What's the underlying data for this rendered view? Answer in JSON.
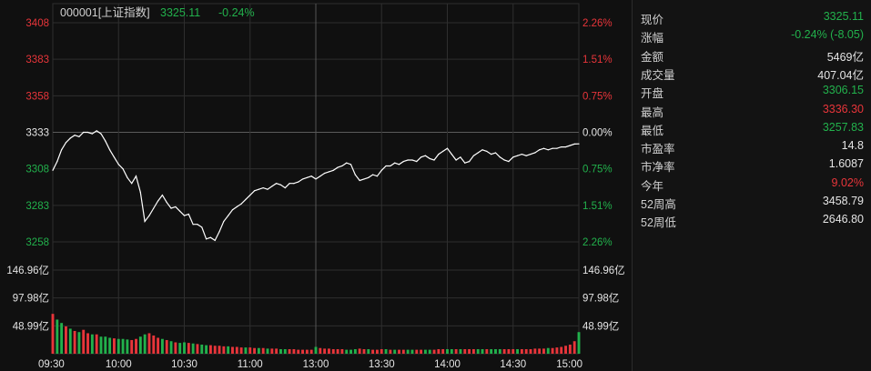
{
  "header": {
    "code_name": "000001[上证指数]",
    "price": "3325.11",
    "change_pct": "-0.24%"
  },
  "colors": {
    "up": "#e8353a",
    "down": "#22b14c",
    "neutral": "#e4e4e4",
    "grid": "#2e2e2e",
    "line": "#ffffff"
  },
  "chart_data": [
    {
      "type": "line",
      "name": "price",
      "x_ticks": [
        "09:30",
        "10:00",
        "10:30",
        "11:00",
        "13:00",
        "13:30",
        "14:00",
        "14:30",
        "15:00"
      ],
      "y_left_ticks": [
        "3408",
        "3383",
        "3358",
        "3333",
        "3308",
        "3283",
        "3258"
      ],
      "y_left_tick_values": [
        3408,
        3383,
        3358,
        3333,
        3308,
        3283,
        3258
      ],
      "y_left_tick_colors": [
        "up",
        "up",
        "up",
        "neutral",
        "down",
        "down",
        "down"
      ],
      "y_right_ticks": [
        "2.26%",
        "1.51%",
        "0.75%",
        "0.00%",
        "0.75%",
        "1.51%",
        "2.26%"
      ],
      "ylim": [
        3258,
        3408
      ],
      "prev_close": 3333.16,
      "grid": true,
      "x": [
        "09:30",
        "09:32",
        "09:34",
        "09:36",
        "09:38",
        "09:40",
        "09:42",
        "09:44",
        "09:46",
        "09:48",
        "09:50",
        "09:52",
        "09:54",
        "09:56",
        "09:58",
        "10:00",
        "10:02",
        "10:04",
        "10:06",
        "10:08",
        "10:10",
        "10:12",
        "10:14",
        "10:16",
        "10:18",
        "10:20",
        "10:22",
        "10:24",
        "10:26",
        "10:28",
        "10:30",
        "10:32",
        "10:34",
        "10:36",
        "10:38",
        "10:40",
        "10:42",
        "10:44",
        "10:46",
        "10:48",
        "10:50",
        "10:52",
        "10:54",
        "10:56",
        "10:58",
        "11:00",
        "11:02",
        "11:04",
        "11:06",
        "11:08",
        "11:10",
        "11:12",
        "11:14",
        "11:16",
        "11:18",
        "11:20",
        "11:22",
        "11:24",
        "11:26",
        "11:28",
        "11:30/13:00",
        "13:02",
        "13:04",
        "13:06",
        "13:08",
        "13:10",
        "13:12",
        "13:14",
        "13:16",
        "13:18",
        "13:20",
        "13:22",
        "13:24",
        "13:26",
        "13:28",
        "13:30",
        "13:32",
        "13:34",
        "13:36",
        "13:38",
        "13:40",
        "13:42",
        "13:44",
        "13:46",
        "13:48",
        "13:50",
        "13:52",
        "13:54",
        "13:56",
        "13:58",
        "14:00",
        "14:02",
        "14:04",
        "14:06",
        "14:08",
        "14:10",
        "14:12",
        "14:14",
        "14:16",
        "14:18",
        "14:20",
        "14:22",
        "14:24",
        "14:26",
        "14:28",
        "14:30",
        "14:32",
        "14:34",
        "14:36",
        "14:38",
        "14:40",
        "14:42",
        "14:44",
        "14:46",
        "14:48",
        "14:50",
        "14:52",
        "14:54",
        "14:56",
        "14:58",
        "15:00"
      ],
      "values": [
        3307,
        3313,
        3321,
        3326,
        3329,
        3331,
        3330,
        3333,
        3333,
        3332,
        3334,
        3332,
        3327,
        3321,
        3316,
        3311,
        3308,
        3302,
        3298,
        3303,
        3292,
        3272,
        3276,
        3281,
        3286,
        3290,
        3285,
        3281,
        3282,
        3279,
        3276,
        3277,
        3270,
        3270,
        3268,
        3260,
        3261,
        3259,
        3265,
        3272,
        3276,
        3280,
        3282,
        3284,
        3287,
        3290,
        3293,
        3294,
        3295,
        3294,
        3296,
        3298,
        3297,
        3295,
        3298,
        3298,
        3299,
        3301,
        3302,
        3303,
        3301,
        3303,
        3305,
        3306,
        3307,
        3309,
        3310,
        3312,
        3311,
        3304,
        3300,
        3301,
        3302,
        3304,
        3303,
        3307,
        3310,
        3310,
        3312,
        3311,
        3313,
        3314,
        3314,
        3313,
        3316,
        3317,
        3315,
        3314,
        3318,
        3320,
        3322,
        3318,
        3314,
        3316,
        3312,
        3313,
        3317,
        3319,
        3321,
        3320,
        3318,
        3319,
        3316,
        3314,
        3313,
        3316,
        3317,
        3318,
        3317,
        3318,
        3319,
        3321,
        3322,
        3321,
        3322,
        3322,
        3323,
        3323,
        3324,
        3325,
        3325.11
      ]
    },
    {
      "type": "bar",
      "name": "volume",
      "unit": "亿",
      "y_ticks": [
        "146.96亿",
        "97.98亿",
        "48.99亿"
      ],
      "y_tick_values": [
        146.96,
        97.98,
        48.99
      ],
      "ylim": [
        0,
        146.96
      ],
      "values": [
        70,
        60,
        54,
        48,
        44,
        40,
        38,
        42,
        36,
        34,
        34,
        30,
        30,
        28,
        27,
        26,
        26,
        25,
        24,
        26,
        30,
        34,
        36,
        32,
        28,
        26,
        24,
        22,
        20,
        19,
        20,
        19,
        18,
        17,
        16,
        15,
        15,
        14,
        14,
        13,
        13,
        12,
        12,
        11,
        11,
        11,
        10,
        10,
        10,
        9,
        9,
        9,
        8,
        8,
        8,
        8,
        7,
        7,
        7,
        7,
        12,
        10,
        9,
        9,
        8,
        8,
        8,
        7,
        7,
        8,
        9,
        8,
        8,
        7,
        7,
        8,
        8,
        7,
        7,
        7,
        7,
        7,
        7,
        7,
        7,
        7,
        7,
        7,
        8,
        8,
        8,
        8,
        8,
        8,
        8,
        8,
        8,
        8,
        8,
        8,
        8,
        8,
        8,
        8,
        8,
        8,
        8,
        8,
        8,
        8,
        9,
        9,
        9,
        10,
        10,
        11,
        12,
        14,
        16,
        22,
        38
      ],
      "colors": [
        "up",
        "down",
        "down",
        "up",
        "down",
        "up",
        "down",
        "up",
        "up",
        "down",
        "up",
        "down",
        "down",
        "down",
        "up",
        "down",
        "down",
        "down",
        "up",
        "up",
        "down",
        "down",
        "up",
        "up",
        "up",
        "down",
        "up",
        "down",
        "up",
        "down",
        "down",
        "up",
        "down",
        "up",
        "down",
        "down",
        "up",
        "up",
        "up",
        "up",
        "down",
        "up",
        "up",
        "up",
        "down",
        "up",
        "up",
        "down",
        "up",
        "down",
        "up",
        "up",
        "down",
        "down",
        "up",
        "up",
        "up",
        "up",
        "up",
        "up",
        "down",
        "up",
        "up",
        "up",
        "up",
        "up",
        "up",
        "down",
        "down",
        "down",
        "up",
        "up",
        "down",
        "up",
        "up",
        "up",
        "down",
        "up",
        "down",
        "up",
        "up",
        "down",
        "down",
        "up",
        "up",
        "down",
        "down",
        "up",
        "up",
        "up",
        "down",
        "down",
        "up",
        "down",
        "up",
        "up",
        "up",
        "down",
        "down",
        "up",
        "down",
        "down",
        "down",
        "up",
        "up",
        "up",
        "down",
        "up",
        "up",
        "up",
        "up",
        "up",
        "up",
        "down",
        "up",
        "up",
        "up",
        "up",
        "up",
        "up",
        "down"
      ]
    }
  ],
  "panel": {
    "rows": [
      {
        "label": "现价",
        "value": "3325.11",
        "color": "down"
      },
      {
        "label": "涨幅",
        "value": "-0.24% (-8.05)",
        "color": "down"
      },
      {
        "label": "金额",
        "value": "5469亿",
        "color": "neutral"
      },
      {
        "label": "成交量",
        "value": "407.04亿",
        "color": "neutral"
      },
      {
        "label": "开盘",
        "value": "3306.15",
        "color": "down"
      },
      {
        "label": "最高",
        "value": "3336.30",
        "color": "up"
      },
      {
        "label": "最低",
        "value": "3257.83",
        "color": "down"
      },
      {
        "label": "市盈率",
        "value": "14.8",
        "color": "neutral"
      },
      {
        "label": "市净率",
        "value": "1.6087",
        "color": "neutral"
      },
      {
        "label": "今年",
        "value": "9.02%",
        "color": "up"
      },
      {
        "label": "52周高",
        "value": "3458.79",
        "color": "neutral"
      },
      {
        "label": "52周低",
        "value": "2646.80",
        "color": "neutral"
      }
    ]
  }
}
